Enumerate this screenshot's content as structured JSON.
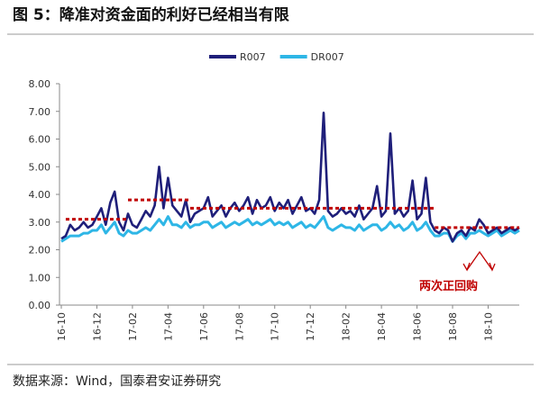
{
  "chart_data": {
    "type": "line",
    "title": "图 5：降准对资金面的利好已经相当有限",
    "source": "数据来源：Wind，国泰君安证券研究",
    "annotation": "两次正回购",
    "categories": [
      "16-10",
      null,
      null,
      null,
      null,
      null,
      null,
      null,
      "16-12",
      null,
      null,
      null,
      null,
      null,
      null,
      null,
      "17-02",
      null,
      null,
      null,
      null,
      null,
      null,
      null,
      "17-04",
      null,
      null,
      null,
      null,
      null,
      null,
      null,
      "17-06",
      null,
      null,
      null,
      null,
      null,
      null,
      null,
      "17-08",
      null,
      null,
      null,
      null,
      null,
      null,
      null,
      "17-10",
      null,
      null,
      null,
      null,
      null,
      null,
      null,
      "17-12",
      null,
      null,
      null,
      null,
      null,
      null,
      null,
      "18-02",
      null,
      null,
      null,
      null,
      null,
      null,
      null,
      "18-04",
      null,
      null,
      null,
      null,
      null,
      null,
      null,
      "18-06",
      null,
      null,
      null,
      null,
      null,
      null,
      null,
      "18-08",
      null,
      null,
      null,
      null,
      null,
      null,
      null,
      "18-10",
      null,
      null,
      null,
      null,
      null,
      null,
      null
    ],
    "series": [
      {
        "name": "R007",
        "color": "#1f1f7a",
        "values": [
          2.4,
          2.5,
          2.9,
          2.7,
          2.8,
          3.0,
          2.8,
          2.9,
          3.2,
          3.5,
          2.9,
          3.7,
          4.1,
          3.0,
          2.7,
          3.3,
          2.9,
          2.8,
          3.1,
          3.4,
          3.2,
          3.6,
          5.0,
          3.5,
          4.6,
          3.6,
          3.4,
          3.2,
          3.8,
          3.0,
          3.3,
          3.4,
          3.5,
          3.9,
          3.2,
          3.4,
          3.6,
          3.2,
          3.5,
          3.7,
          3.4,
          3.6,
          3.9,
          3.3,
          3.8,
          3.5,
          3.6,
          3.9,
          3.4,
          3.7,
          3.5,
          3.8,
          3.3,
          3.6,
          3.9,
          3.4,
          3.5,
          3.3,
          3.8,
          6.95,
          3.4,
          3.2,
          3.3,
          3.5,
          3.3,
          3.4,
          3.2,
          3.6,
          3.1,
          3.3,
          3.5,
          4.3,
          3.2,
          3.4,
          6.2,
          3.3,
          3.5,
          3.2,
          3.4,
          4.5,
          3.1,
          3.3,
          4.6,
          3.0,
          2.7,
          2.6,
          2.8,
          2.7,
          2.3,
          2.6,
          2.7,
          2.5,
          2.8,
          2.7,
          3.1,
          2.9,
          2.6,
          2.7,
          2.8,
          2.6,
          2.7,
          2.8,
          2.7,
          2.8
        ]
      },
      {
        "name": "DR007",
        "color": "#2eb6e6",
        "values": [
          2.3,
          2.4,
          2.5,
          2.5,
          2.5,
          2.6,
          2.6,
          2.7,
          2.7,
          2.9,
          2.6,
          2.8,
          3.0,
          2.6,
          2.5,
          2.7,
          2.6,
          2.6,
          2.7,
          2.8,
          2.7,
          2.9,
          3.1,
          2.9,
          3.2,
          2.9,
          2.9,
          2.8,
          3.0,
          2.8,
          2.9,
          2.9,
          3.0,
          3.0,
          2.8,
          2.9,
          3.0,
          2.8,
          2.9,
          3.0,
          2.9,
          3.0,
          3.1,
          2.9,
          3.0,
          2.9,
          3.0,
          3.1,
          2.9,
          3.0,
          2.9,
          3.0,
          2.8,
          2.9,
          3.0,
          2.8,
          2.9,
          2.8,
          3.0,
          3.2,
          2.8,
          2.7,
          2.8,
          2.9,
          2.8,
          2.8,
          2.7,
          2.9,
          2.7,
          2.8,
          2.9,
          2.9,
          2.7,
          2.8,
          3.0,
          2.8,
          2.9,
          2.7,
          2.8,
          3.0,
          2.7,
          2.8,
          3.0,
          2.7,
          2.5,
          2.5,
          2.6,
          2.6,
          2.3,
          2.5,
          2.6,
          2.4,
          2.6,
          2.6,
          2.7,
          2.6,
          2.5,
          2.6,
          2.7,
          2.5,
          2.6,
          2.7,
          2.6,
          2.7
        ]
      }
    ],
    "reference_lines": [
      {
        "value": 3.1,
        "from": 1,
        "to": 15,
        "color": "#c00000"
      },
      {
        "value": 3.8,
        "from": 15,
        "to": 29,
        "color": "#c00000"
      },
      {
        "value": 3.5,
        "from": 29,
        "to": 84,
        "color": "#c00000"
      },
      {
        "value": 2.8,
        "from": 84,
        "to": 103,
        "color": "#c00000"
      }
    ],
    "ylim": [
      0,
      8
    ],
    "yticks": [
      {
        "value": 0,
        "label": "0.00"
      },
      {
        "value": 1,
        "label": "1.00"
      },
      {
        "value": 2,
        "label": "2.00"
      },
      {
        "value": 3,
        "label": "3.00"
      },
      {
        "value": 4,
        "label": "4.00"
      },
      {
        "value": 5,
        "label": "5.00"
      },
      {
        "value": 6,
        "label": "6.00"
      },
      {
        "value": 7,
        "label": "7.00"
      },
      {
        "value": 8,
        "label": "8.00"
      }
    ],
    "legend": "top"
  }
}
